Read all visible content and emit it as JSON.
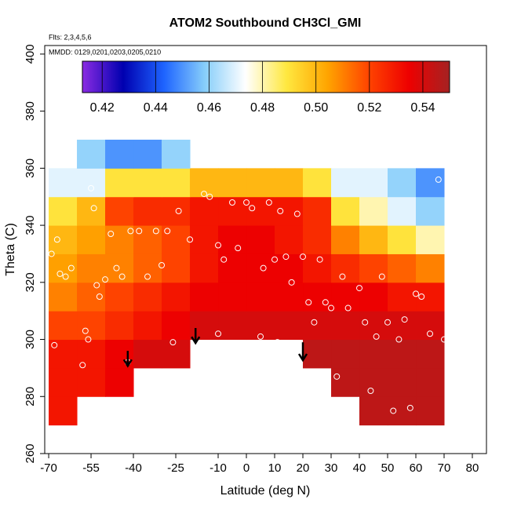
{
  "chart_data": {
    "type": "heatmap",
    "title": "ATOM2 Southbound CH3Cl_GMI",
    "subtitle": "Flts: 2,3,4,5,6",
    "annotation": "MMDD: 0129,0201,0203,0205,0210",
    "x_label": "Latitude (deg N)",
    "y_label": "Theta (C)",
    "xlim": [
      -71.4,
      85
    ],
    "ylim": [
      260,
      403
    ],
    "xticks": [
      -70,
      -55,
      -40,
      -25,
      -10,
      0,
      10,
      20,
      30,
      40,
      50,
      60,
      70,
      80
    ],
    "yticks": [
      260,
      280,
      300,
      320,
      340,
      360,
      380,
      400
    ],
    "x_edges": [
      -70,
      -60,
      -50,
      -40,
      -30,
      -20,
      -10,
      0,
      10,
      20,
      30,
      40,
      50,
      60,
      70
    ],
    "y_edges": [
      270,
      280,
      290,
      300,
      310,
      320,
      330,
      340,
      350,
      360,
      370
    ],
    "z": [
      [
        0.53,
        null,
        null,
        null,
        null,
        null,
        null,
        null,
        null,
        null,
        null,
        0.545,
        0.545,
        0.545
      ],
      [
        0.53,
        0.53,
        0.535,
        null,
        null,
        null,
        null,
        null,
        null,
        null,
        0.545,
        0.545,
        0.545,
        0.545
      ],
      [
        0.53,
        0.53,
        0.535,
        0.54,
        0.54,
        null,
        null,
        null,
        null,
        0.545,
        0.545,
        0.545,
        0.545,
        0.545
      ],
      [
        0.52,
        0.52,
        0.525,
        0.53,
        0.535,
        0.54,
        0.54,
        0.54,
        0.54,
        0.54,
        0.54,
        0.54,
        0.54,
        0.54
      ],
      [
        0.51,
        0.515,
        0.52,
        0.525,
        0.53,
        0.535,
        0.535,
        0.535,
        0.535,
        0.535,
        0.535,
        0.535,
        0.53,
        0.53
      ],
      [
        0.505,
        0.51,
        0.51,
        0.515,
        0.52,
        0.53,
        0.535,
        0.535,
        0.535,
        0.53,
        0.525,
        0.52,
        0.515,
        0.51
      ],
      [
        0.5,
        0.505,
        0.51,
        0.515,
        0.52,
        0.53,
        0.535,
        0.535,
        0.53,
        0.525,
        0.51,
        0.5,
        0.49,
        0.48
      ],
      [
        0.49,
        0.5,
        0.52,
        0.525,
        0.525,
        0.53,
        0.53,
        0.53,
        0.53,
        0.525,
        0.49,
        0.48,
        0.47,
        0.46
      ],
      [
        0.47,
        0.47,
        0.49,
        0.49,
        0.49,
        0.5,
        0.5,
        0.5,
        0.5,
        0.49,
        0.47,
        0.47,
        0.46,
        0.45
      ],
      [
        null,
        0.46,
        0.45,
        0.45,
        0.46,
        null,
        null,
        null,
        null,
        null,
        null,
        null,
        null,
        null
      ]
    ],
    "colorbar_lim": [
      0.4126,
      0.55
    ],
    "colorbar_ticks": [
      {
        "value": 0.42,
        "label": "0.42"
      },
      {
        "value": 0.44,
        "label": "0.44"
      },
      {
        "value": 0.46,
        "label": "0.46"
      },
      {
        "value": 0.48,
        "label": "0.48"
      },
      {
        "value": 0.5,
        "label": "0.50"
      },
      {
        "value": 0.52,
        "label": "0.52"
      },
      {
        "value": 0.54,
        "label": "0.54"
      }
    ],
    "colormap": [
      "#8a2be2",
      "#0000b0",
      "#1e64ff",
      "#87cefa",
      "#ffffff",
      "#ffe840",
      "#ffa500",
      "#ff4500",
      "#ee0000",
      "#a52222"
    ],
    "points": {
      "x": [
        -69,
        -68,
        -67,
        -66,
        -64,
        -62,
        -58,
        -57,
        -56,
        -55,
        -54,
        -53,
        -52,
        -50,
        -48,
        -46,
        -44,
        -42,
        -41,
        -38,
        -35,
        -32,
        -30,
        -28,
        -26,
        -24,
        -20,
        -15,
        -13,
        -10,
        -10,
        -8,
        -5,
        -3,
        0,
        2,
        5,
        6,
        8,
        10,
        11,
        12,
        14,
        16,
        18,
        20,
        22,
        24,
        26,
        28,
        30,
        32,
        34,
        36,
        40,
        42,
        44,
        46,
        48,
        50,
        52,
        54,
        56,
        58,
        60,
        62,
        65,
        68,
        70
      ],
      "y": [
        330,
        298,
        335,
        323,
        322,
        325,
        291,
        303,
        300,
        353,
        346,
        319,
        315,
        321,
        337,
        325,
        322,
        292,
        338,
        338,
        322,
        338,
        326,
        338,
        299,
        345,
        335,
        351,
        350,
        302,
        333,
        328,
        348,
        332,
        348,
        346,
        301,
        325,
        348,
        328,
        299,
        345,
        329,
        320,
        344,
        329,
        313,
        306,
        328,
        313,
        311,
        287,
        322,
        311,
        318,
        306,
        282,
        301,
        322,
        306,
        275,
        300,
        307,
        276,
        316,
        315,
        302,
        356,
        300
      ]
    },
    "arrows": {
      "x": [
        -42,
        -18,
        20
      ],
      "y_start": [
        296,
        304,
        299
      ],
      "y_end": [
        291,
        299,
        293
      ]
    }
  }
}
